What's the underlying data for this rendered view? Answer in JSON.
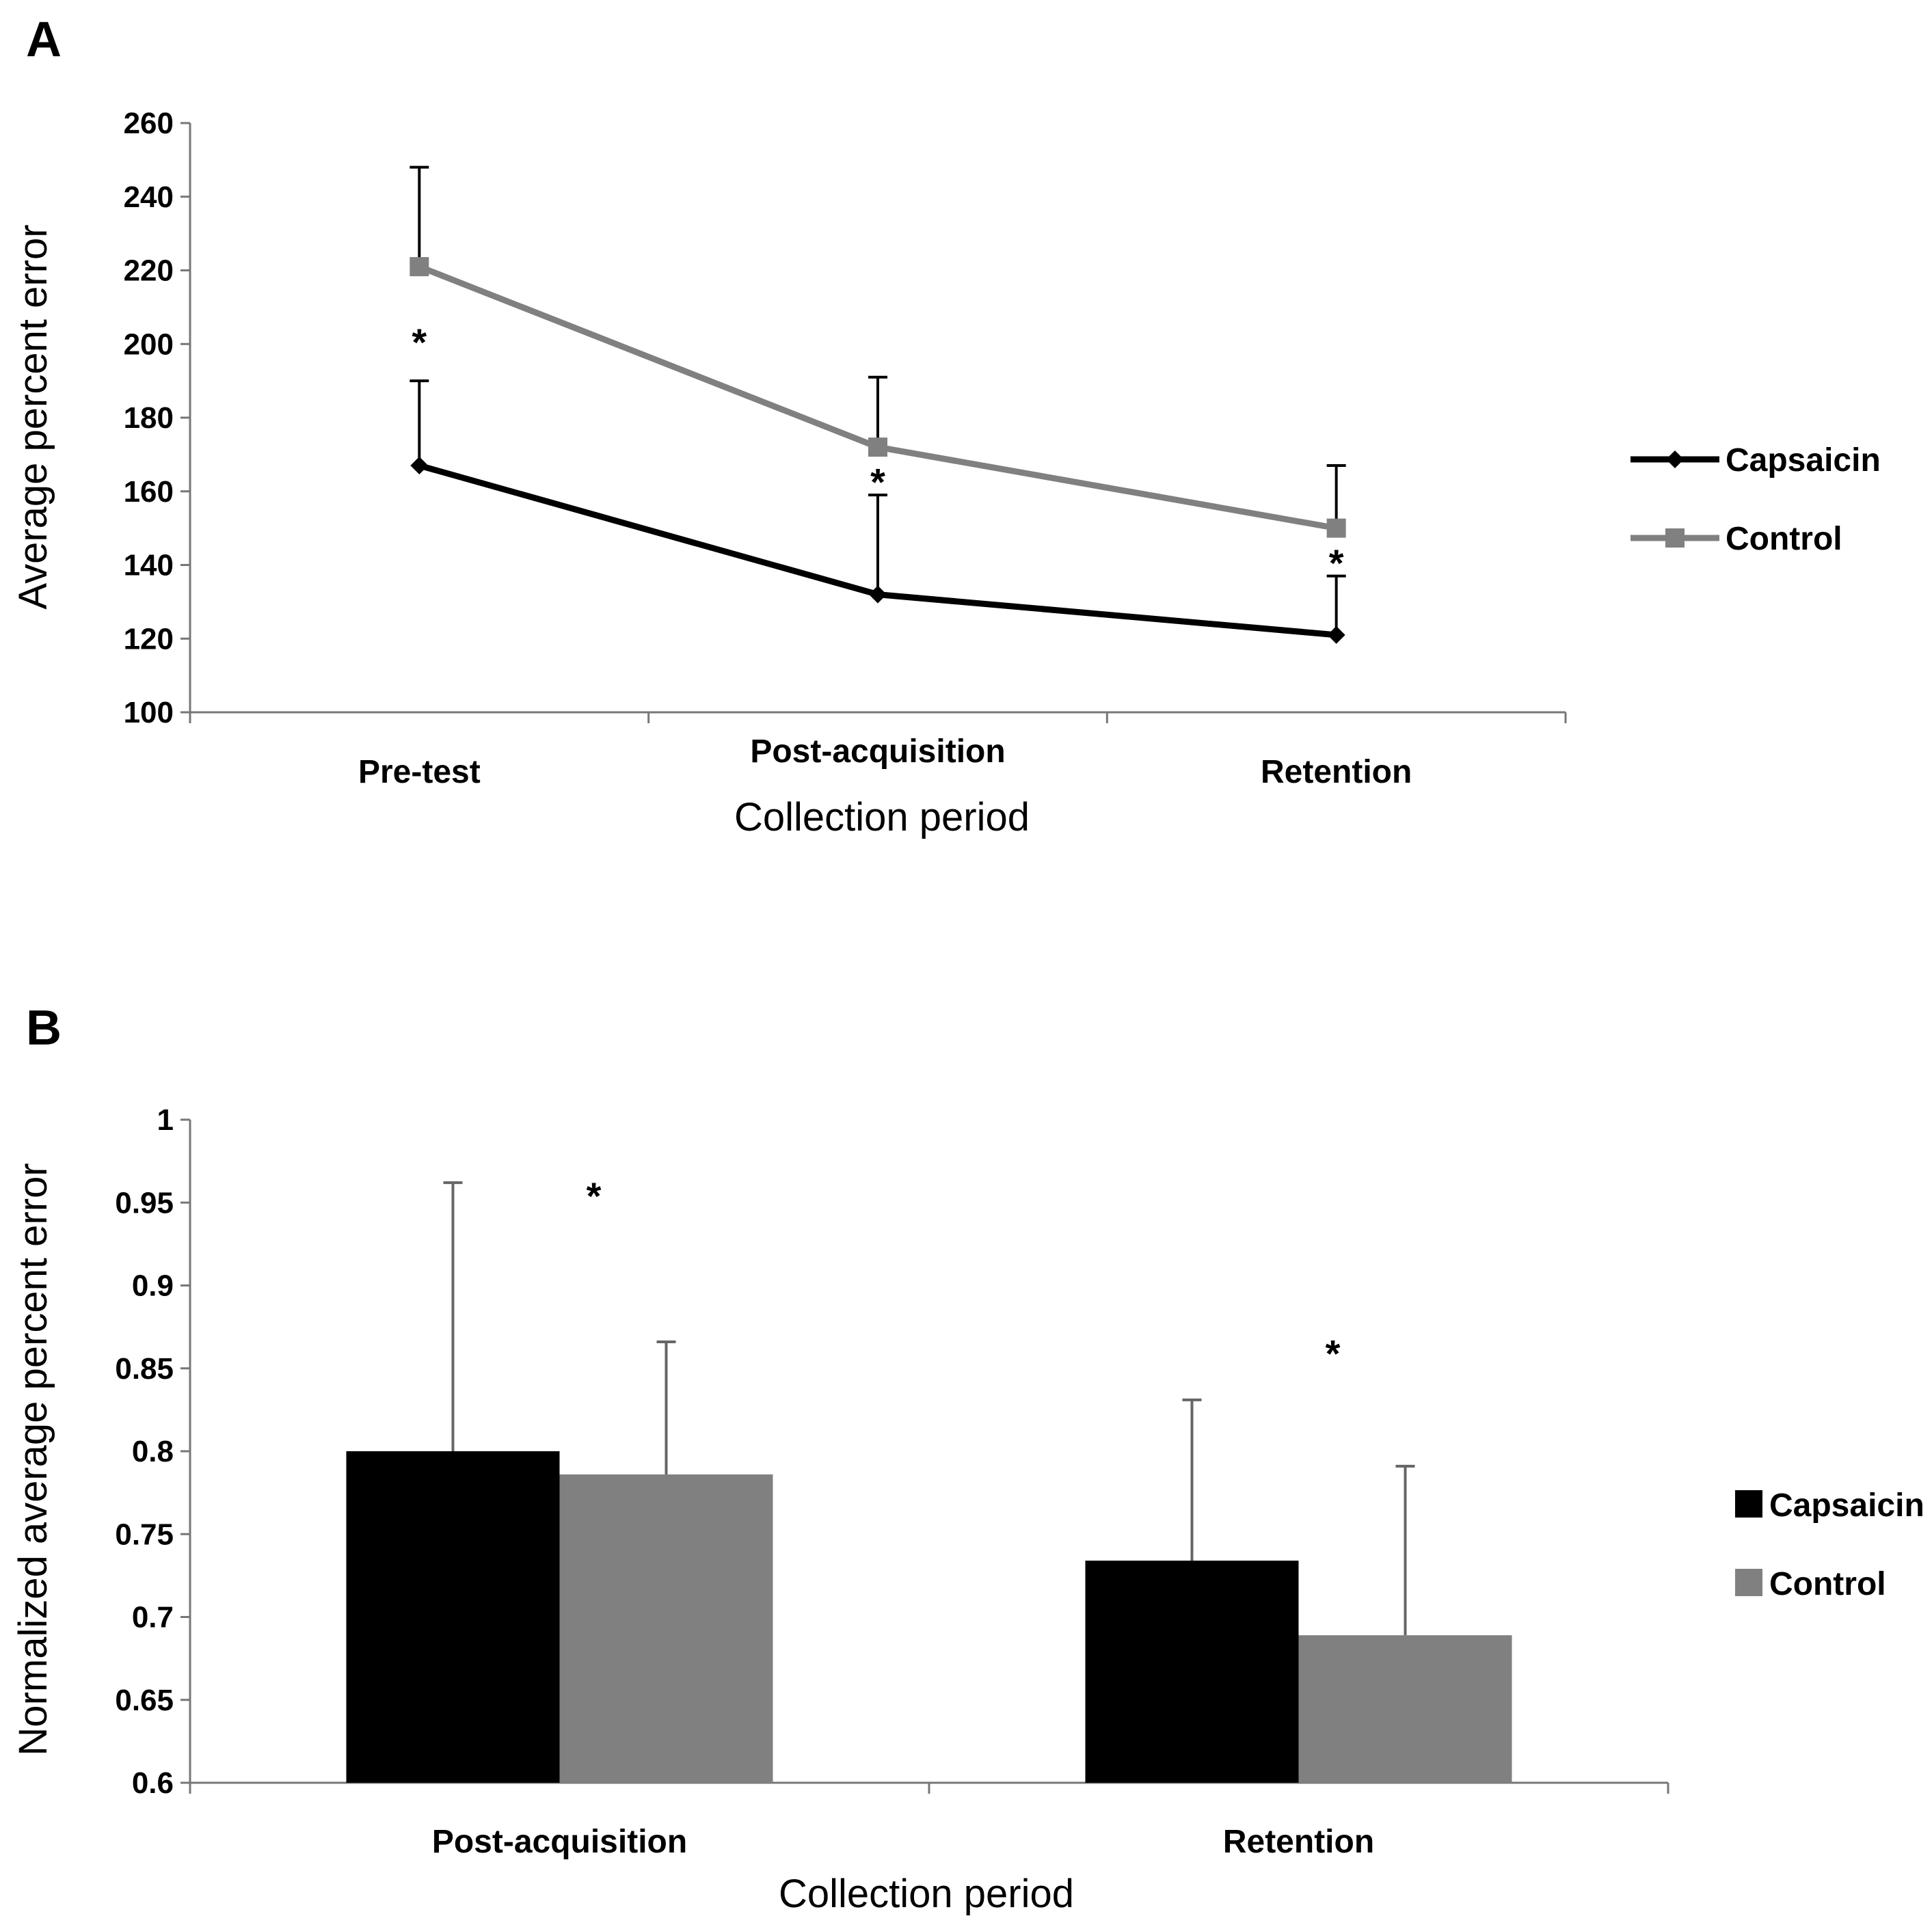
{
  "figure": {
    "panels": [
      {
        "letter": "A"
      },
      {
        "letter": "B"
      }
    ]
  },
  "chart_data": [
    {
      "type": "line",
      "panel": "A",
      "title": "",
      "xlabel": "Collection period",
      "ylabel": "Average percent error",
      "categories": [
        "Pre-test",
        "Post-acquisition",
        "Retention"
      ],
      "ylim": [
        100,
        260
      ],
      "yticks": [
        "100",
        "120",
        "140",
        "160",
        "180",
        "200",
        "220",
        "240",
        "260"
      ],
      "grid": false,
      "legend": "right",
      "series": [
        {
          "name": "Capsaicin",
          "color": "#000000",
          "marker": "diamond",
          "values": [
            167,
            132,
            121
          ],
          "error_upper": [
            190,
            159,
            137
          ]
        },
        {
          "name": "Control",
          "color": "#808080",
          "marker": "square",
          "values": [
            221,
            172,
            150
          ],
          "error_upper": [
            248,
            191,
            167
          ]
        }
      ],
      "annotations": [
        {
          "text": "*",
          "category": "Pre-test",
          "y": 201
        },
        {
          "text": "*",
          "category": "Post-acquisition",
          "y": 163
        },
        {
          "text": "*",
          "category": "Retention",
          "y": 141
        }
      ]
    },
    {
      "type": "bar",
      "panel": "B",
      "title": "",
      "xlabel": "Collection period",
      "ylabel": "Normalized average percent error",
      "categories": [
        "Post-acquisition",
        "Retention"
      ],
      "ylim": [
        0.6,
        1.0
      ],
      "yticks": [
        "0.6",
        "0.65",
        "0.7",
        "0.75",
        "0.8",
        "0.85",
        "0.9",
        "0.95",
        "1"
      ],
      "grid": false,
      "legend": "right",
      "series": [
        {
          "name": "Capsaicin",
          "color": "#000000",
          "values": [
            0.8,
            0.734
          ],
          "error_upper": [
            0.962,
            0.831
          ]
        },
        {
          "name": "Control",
          "color": "#808080",
          "values": [
            0.786,
            0.689
          ],
          "error_upper": [
            0.866,
            0.791
          ]
        }
      ],
      "annotations": [
        {
          "text": "*",
          "category": "Post-acquisition",
          "y": 0.955
        },
        {
          "text": "*",
          "category": "Retention",
          "y": 0.86
        }
      ]
    }
  ]
}
